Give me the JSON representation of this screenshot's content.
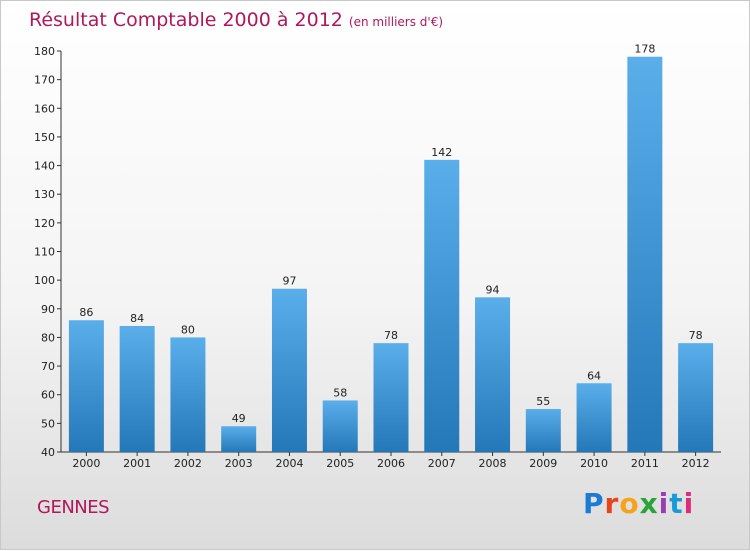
{
  "header": {
    "title": "Résultat Comptable 2000 à 2012",
    "subtitle": "(en milliers d'€)"
  },
  "footer": {
    "commune": "GENNES",
    "logo": {
      "text": "Proxiti",
      "colors": [
        "#1a7ad4",
        "#e8431b",
        "#f6a21b",
        "#2aa43a",
        "#9b3cb7",
        "#1a9bd8",
        "#e02a7b"
      ]
    }
  },
  "colors": {
    "bar_top": "#5aaeea",
    "bar_bottom": "#2478b8",
    "title": "#b0185a"
  },
  "chart_data": {
    "type": "bar",
    "categories": [
      "2000",
      "2001",
      "2002",
      "2003",
      "2004",
      "2005",
      "2006",
      "2007",
      "2008",
      "2009",
      "2010",
      "2011",
      "2012"
    ],
    "values": [
      86,
      84,
      80,
      49,
      97,
      58,
      78,
      142,
      94,
      55,
      64,
      178,
      78
    ],
    "ylim": [
      40,
      180
    ],
    "yticks": [
      40,
      50,
      60,
      70,
      80,
      90,
      100,
      110,
      120,
      130,
      140,
      150,
      160,
      170,
      180
    ],
    "grid": false,
    "data_labels": true
  }
}
